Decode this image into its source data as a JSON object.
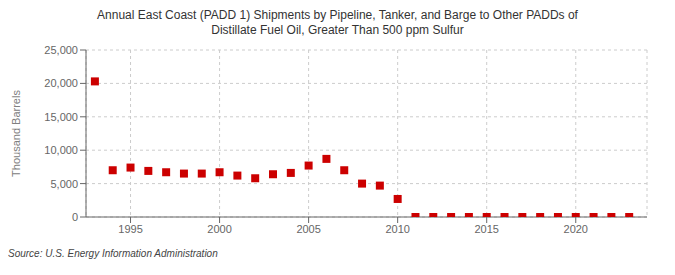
{
  "chart_data": {
    "type": "scatter",
    "title": "Annual East Coast (PADD 1) Shipments by Pipeline, Tanker, and Barge to Other PADDs of\nDistillate Fuel Oil, Greater Than 500 ppm Sulfur",
    "ylabel": "Thousand Barrels",
    "annotations": [
      "Source: U.S. Energy Information Administration"
    ],
    "x": [
      1993,
      1994,
      1995,
      1996,
      1997,
      1998,
      1999,
      2000,
      2001,
      2002,
      2003,
      2004,
      2005,
      2006,
      2007,
      2008,
      2009,
      2010,
      2011,
      2012,
      2013,
      2014,
      2015,
      2016,
      2017,
      2018,
      2019,
      2020,
      2021,
      2022,
      2023
    ],
    "values": [
      20300,
      7000,
      7400,
      6900,
      6700,
      6500,
      6500,
      6700,
      6200,
      5800,
      6400,
      6600,
      7700,
      8700,
      7000,
      5000,
      4700,
      2700,
      0,
      0,
      0,
      0,
      0,
      0,
      0,
      0,
      0,
      0,
      0,
      0,
      0
    ],
    "color": "#cc0000",
    "marker": "square",
    "grid": true,
    "xlim": [
      1992.5,
      2024
    ],
    "xticks": [
      1995,
      2000,
      2005,
      2010,
      2015,
      2020
    ],
    "ylim": [
      0,
      25000
    ],
    "yticks": [
      0,
      {
        "value": 5000,
        "label": "5,000"
      },
      {
        "value": 10000,
        "label": "10,000"
      },
      {
        "value": 15000,
        "label": "15,000"
      },
      {
        "value": 20000,
        "label": "20,000"
      },
      {
        "value": 25000,
        "label": "25,000"
      }
    ]
  }
}
